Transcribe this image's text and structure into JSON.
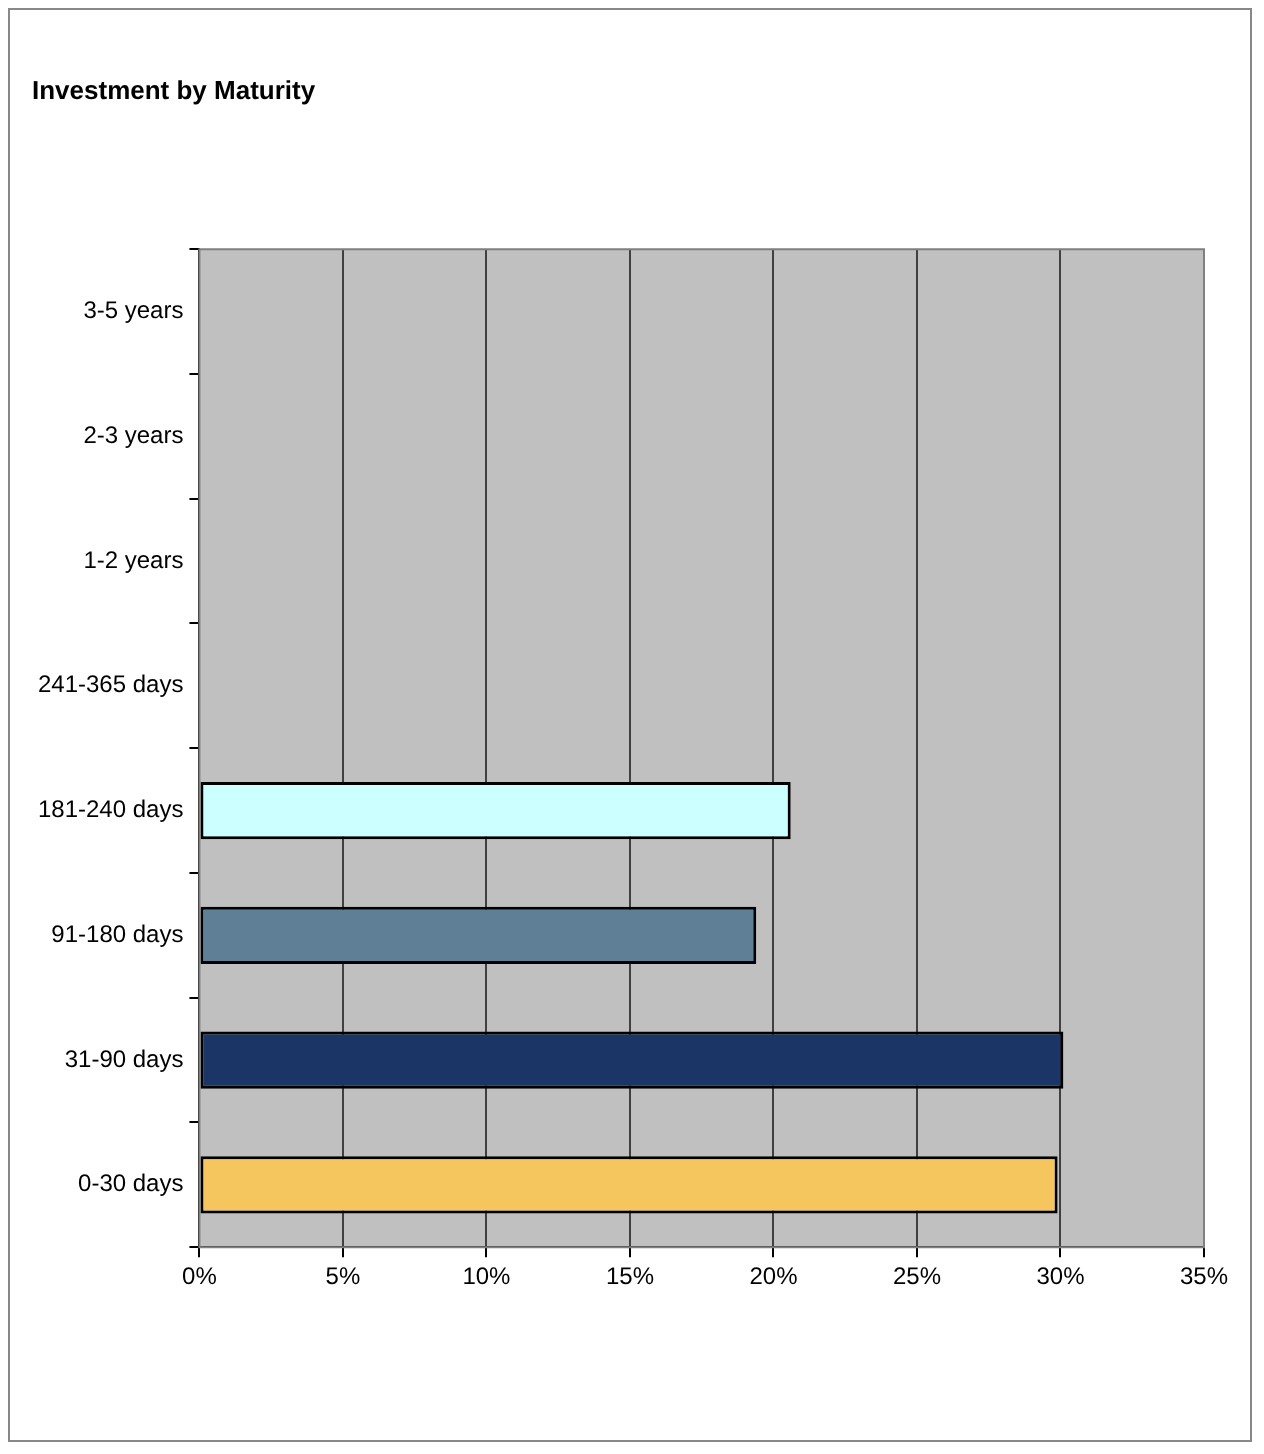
{
  "chart_data": {
    "type": "bar",
    "title": "Investment by Maturity",
    "orientation": "horizontal",
    "categories": [
      "3-5 years",
      "2-3 years",
      "1-2 years",
      "241-365 days",
      "181-240 days",
      "91-180 days",
      "31-90 days",
      "0-30 days"
    ],
    "values": [
      null,
      null,
      null,
      null,
      20.6,
      19.4,
      30.1,
      29.9
    ],
    "colors": [
      null,
      null,
      null,
      null,
      "#ccffff",
      "#5f7f96",
      "#1b3566",
      "#f5c55e"
    ],
    "xlim": [
      0,
      35
    ],
    "xticks": [
      {
        "value": 0,
        "label": "0%"
      },
      {
        "value": 5,
        "label": "5%"
      },
      {
        "value": 10,
        "label": "10%"
      },
      {
        "value": 15,
        "label": "15%"
      },
      {
        "value": 20,
        "label": "20%"
      },
      {
        "value": 25,
        "label": "25%"
      },
      {
        "value": 30,
        "label": "30%"
      },
      {
        "value": 35,
        "label": "35%"
      }
    ],
    "grid": "x",
    "legend": false
  }
}
